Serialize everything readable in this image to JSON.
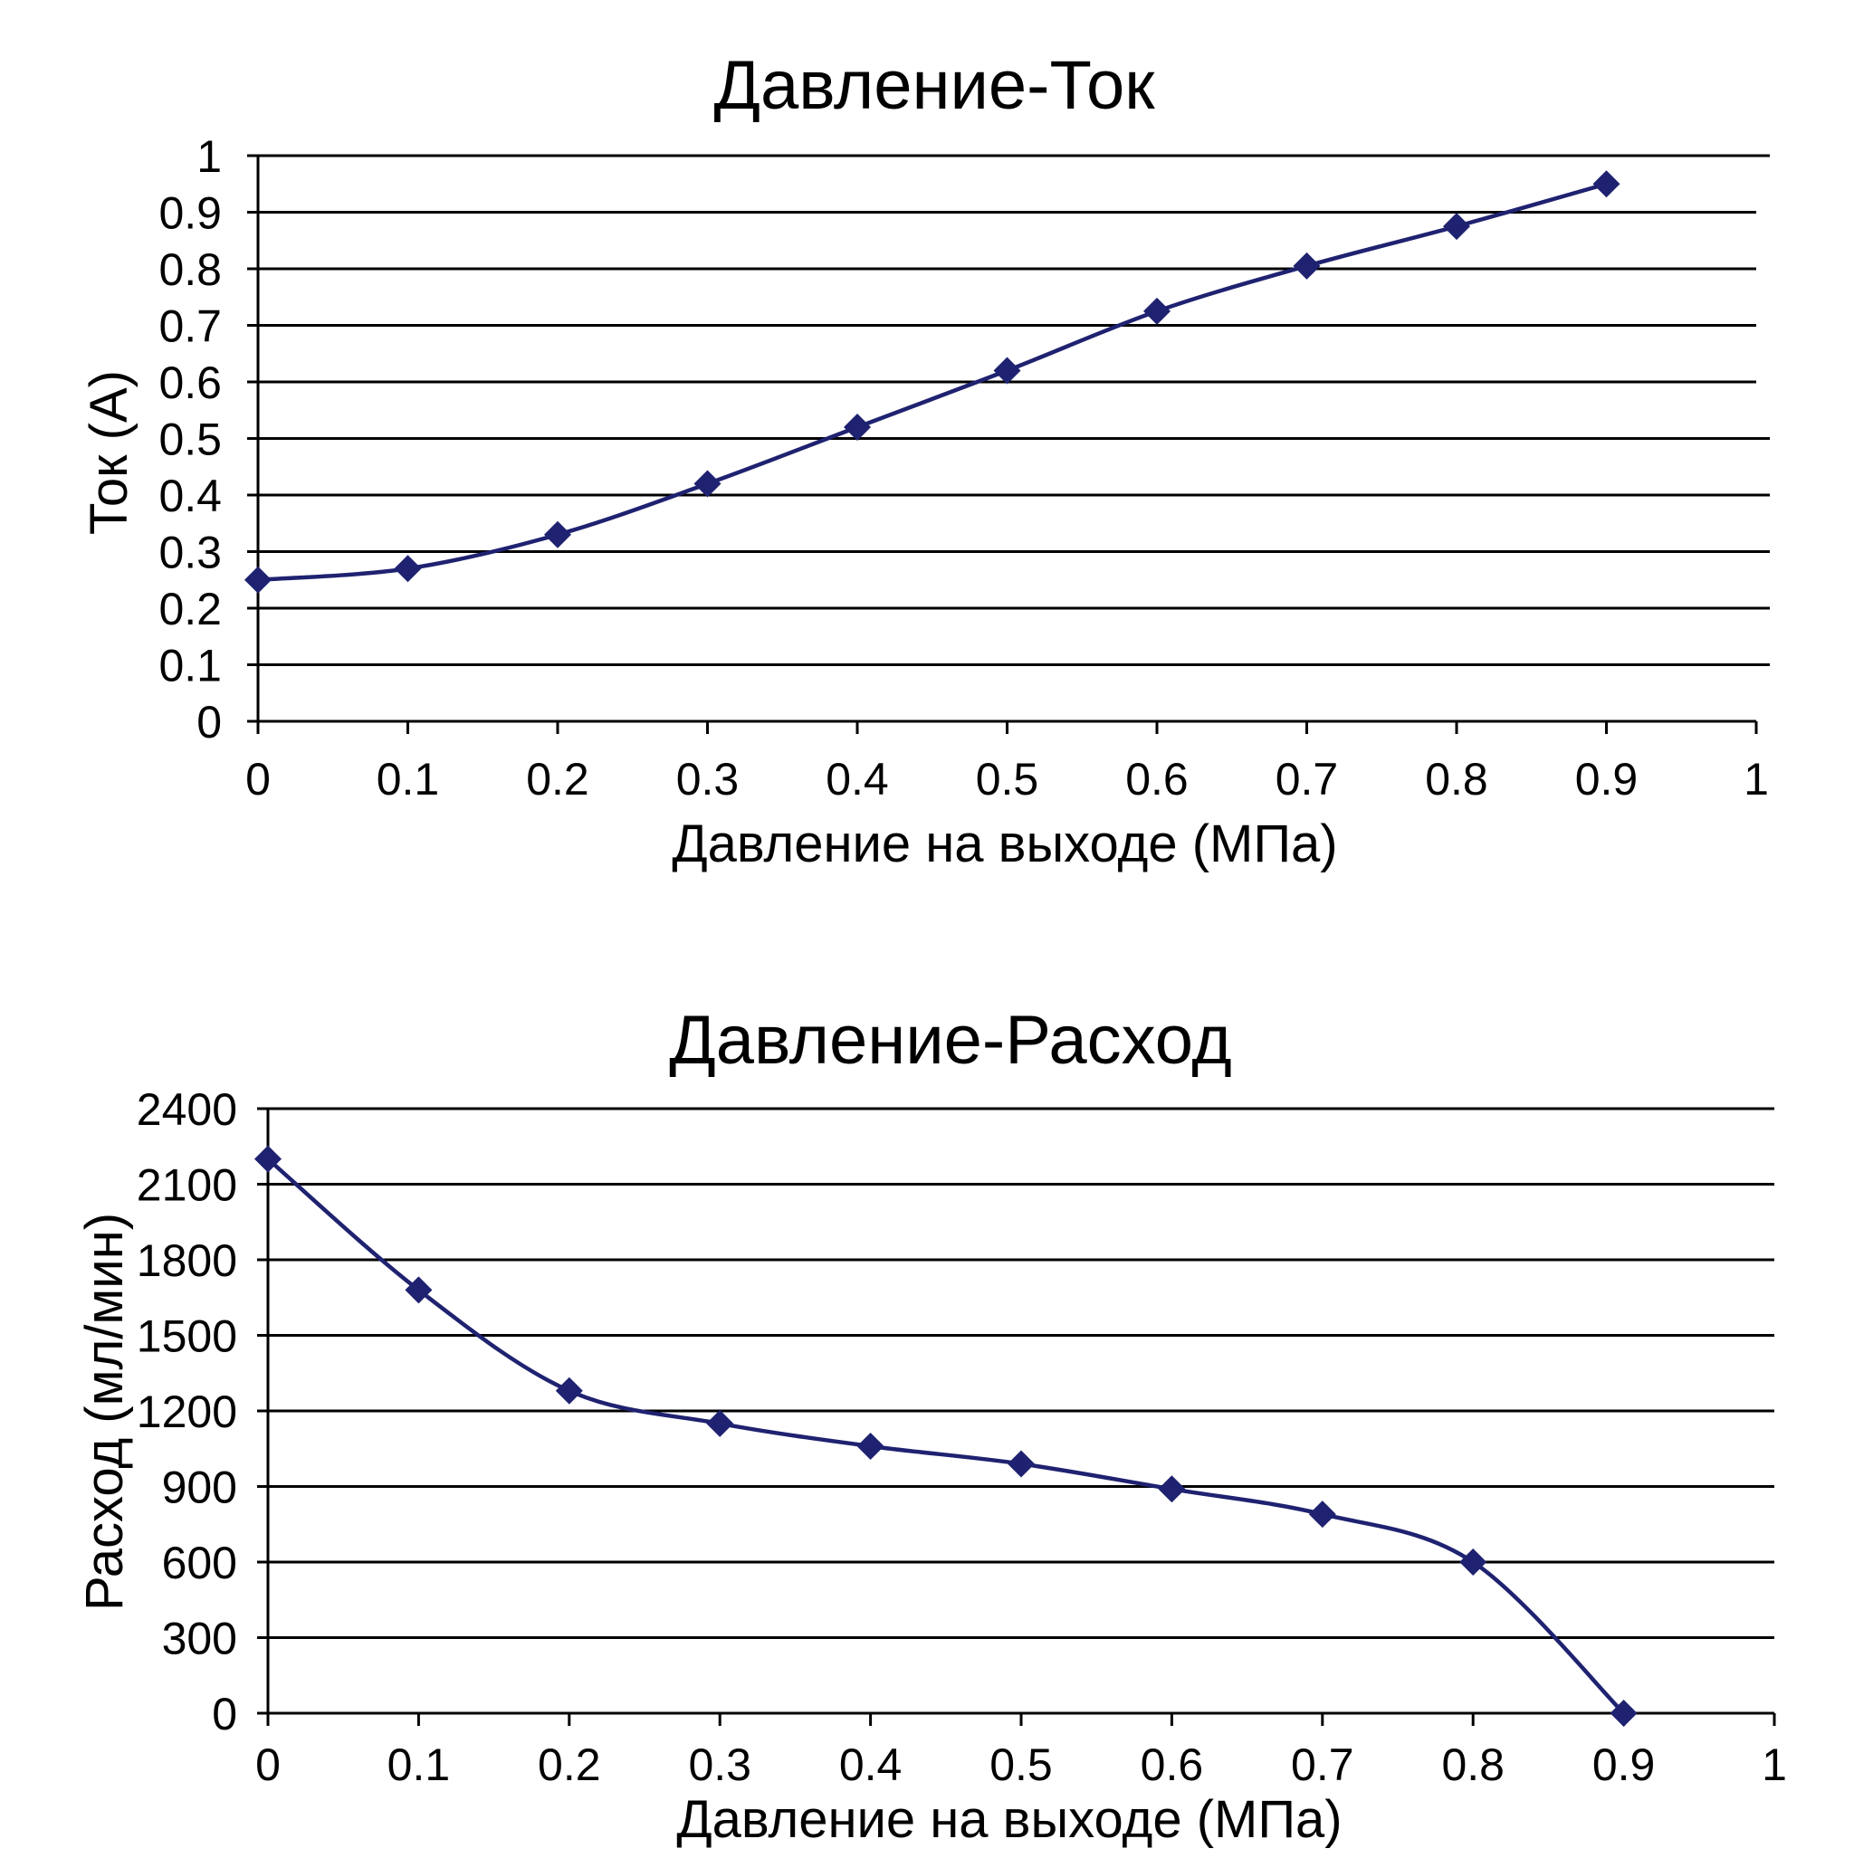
{
  "series_color": "#1f2270",
  "chart_data": [
    {
      "type": "line",
      "title": "Давление-Ток",
      "xlabel": "Давление на выходе (МПа)",
      "ylabel": "Ток (А)",
      "xlim": [
        0,
        1
      ],
      "ylim": [
        0,
        1
      ],
      "x_ticks": [
        "0",
        "0.1",
        "0.2",
        "0.3",
        "0.4",
        "0.5",
        "0.6",
        "0.7",
        "0.8",
        "0.9",
        "1"
      ],
      "y_ticks": [
        "0",
        "0.1",
        "0.2",
        "0.3",
        "0.4",
        "0.5",
        "0.6",
        "0.7",
        "0.8",
        "0.9",
        "1"
      ],
      "grid": true,
      "smooth": true,
      "marker": "diamond",
      "x": [
        0,
        0.1,
        0.2,
        0.3,
        0.4,
        0.5,
        0.6,
        0.7,
        0.8,
        0.9
      ],
      "y": [
        0.25,
        0.27,
        0.33,
        0.42,
        0.52,
        0.62,
        0.725,
        0.805,
        0.875,
        0.95
      ]
    },
    {
      "type": "line",
      "title": "Давление-Расход",
      "xlabel": "Давление на выходе (МПа)",
      "ylabel": "Расход (мл/мин)",
      "xlim": [
        0,
        1
      ],
      "ylim": [
        0,
        2400
      ],
      "x_ticks": [
        "0",
        "0.1",
        "0.2",
        "0.3",
        "0.4",
        "0.5",
        "0.6",
        "0.7",
        "0.8",
        "0.9",
        "1"
      ],
      "y_ticks": [
        "0",
        "300",
        "600",
        "900",
        "1200",
        "1500",
        "1800",
        "2100",
        "2400"
      ],
      "grid": true,
      "smooth": true,
      "marker": "diamond",
      "x": [
        0,
        0.1,
        0.2,
        0.3,
        0.4,
        0.5,
        0.6,
        0.7,
        0.8,
        0.9
      ],
      "y": [
        2200,
        1680,
        1280,
        1150,
        1060,
        990,
        890,
        790,
        600,
        0
      ]
    }
  ]
}
